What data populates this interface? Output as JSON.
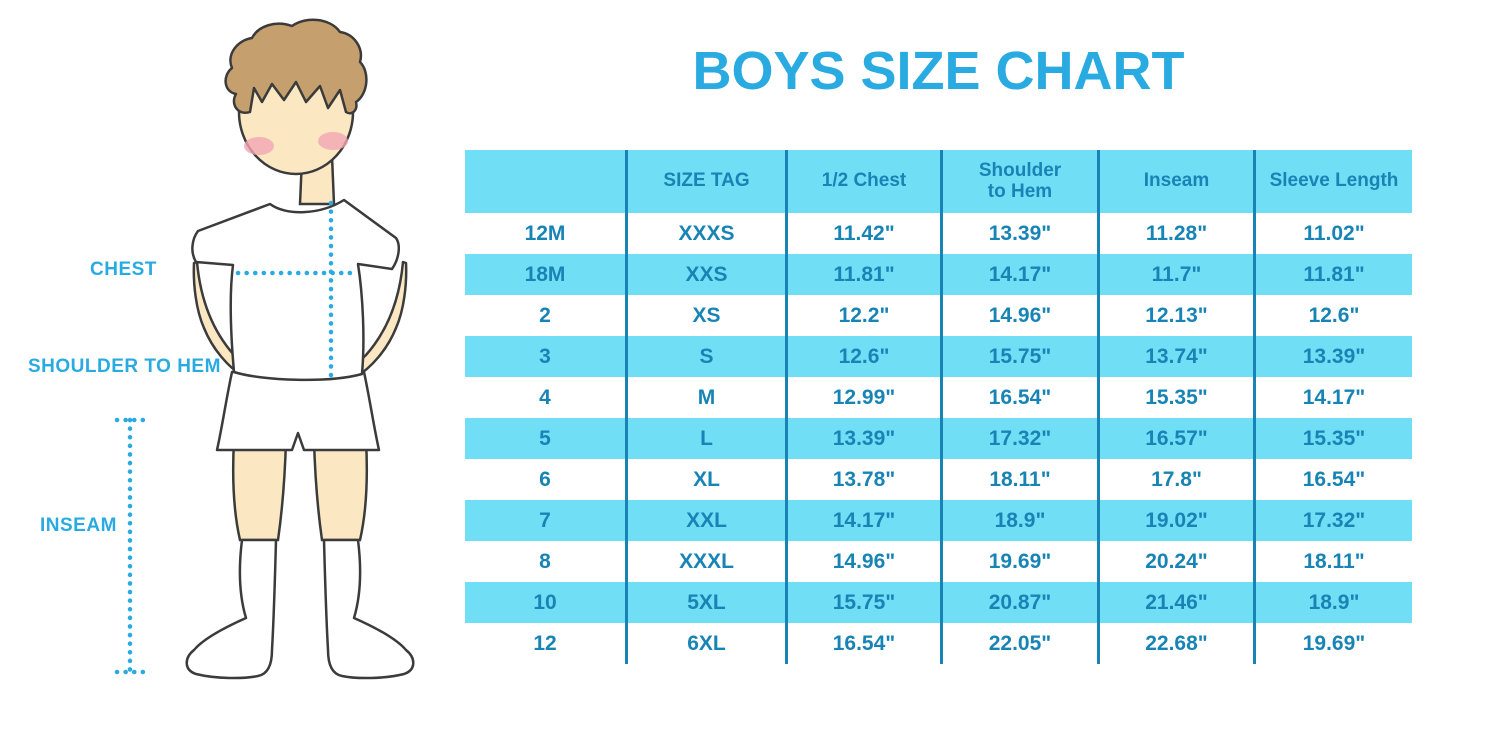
{
  "title": "BOYS SIZE CHART",
  "figure_labels": {
    "chest": "CHEST",
    "shoulder_to_hem": "SHOULDER TO HEM",
    "inseam": "INSEAM"
  },
  "colors": {
    "accent_blue": "#29ABE2",
    "table_stripe": "#70DFF6",
    "table_text": "#1884B5",
    "skin": "#FBE8C3",
    "hair": "#C5A06E",
    "blush": "#F2A6B4",
    "outline": "#3B3B3B"
  },
  "chart_data": {
    "type": "table",
    "title": "BOYS SIZE CHART",
    "columns": [
      "",
      "SIZE TAG",
      "1/2 Chest",
      "Shoulder to Hem",
      "Inseam",
      "Sleeve Length"
    ],
    "rows": [
      [
        "12M",
        "XXXS",
        "11.42\"",
        "13.39\"",
        "11.28\"",
        "11.02\""
      ],
      [
        "18M",
        "XXS",
        "11.81\"",
        "14.17\"",
        "11.7\"",
        "11.81\""
      ],
      [
        "2",
        "XS",
        "12.2\"",
        "14.96\"",
        "12.13\"",
        "12.6\""
      ],
      [
        "3",
        "S",
        "12.6\"",
        "15.75\"",
        "13.74\"",
        "13.39\""
      ],
      [
        "4",
        "M",
        "12.99\"",
        "16.54\"",
        "15.35\"",
        "14.17\""
      ],
      [
        "5",
        "L",
        "13.39\"",
        "17.32\"",
        "16.57\"",
        "15.35\""
      ],
      [
        "6",
        "XL",
        "13.78\"",
        "18.11\"",
        "17.8\"",
        "16.54\""
      ],
      [
        "7",
        "XXL",
        "14.17\"",
        "18.9\"",
        "19.02\"",
        "17.32\""
      ],
      [
        "8",
        "XXXL",
        "14.96\"",
        "19.69\"",
        "20.24\"",
        "18.11\""
      ],
      [
        "10",
        "5XL",
        "15.75\"",
        "20.87\"",
        "21.46\"",
        "18.9\""
      ],
      [
        "12",
        "6XL",
        "16.54\"",
        "22.05\"",
        "22.68\"",
        "19.69\""
      ]
    ]
  }
}
